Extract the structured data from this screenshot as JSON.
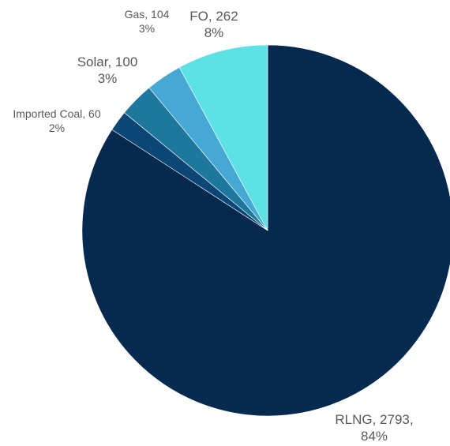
{
  "chart_data": {
    "type": "pie",
    "start_angle_deg": 0,
    "direction": "clockwise",
    "slices": [
      {
        "label": "RLNG",
        "value": 2793,
        "percent": "84%",
        "color": "#05294f",
        "label_lines": [
          "RLNG, 2793,",
          "84%"
        ]
      },
      {
        "label": "Imported Coal",
        "value": 60,
        "percent": "2%",
        "color": "#0b4674",
        "label_lines": [
          "Imported Coal, 60",
          "2%"
        ]
      },
      {
        "label": "Solar",
        "value": 100,
        "percent": "3%",
        "color": "#1e789e",
        "label_lines": [
          "Solar, 100",
          "3%"
        ]
      },
      {
        "label": "Gas",
        "value": 104,
        "percent": "3%",
        "color": "#46a9d5",
        "label_lines": [
          "Gas, 104",
          "3%"
        ]
      },
      {
        "label": "FO",
        "value": 262,
        "percent": "8%",
        "color": "#5ce1e6",
        "label_lines": [
          "FO, 262",
          "8%"
        ]
      }
    ]
  }
}
